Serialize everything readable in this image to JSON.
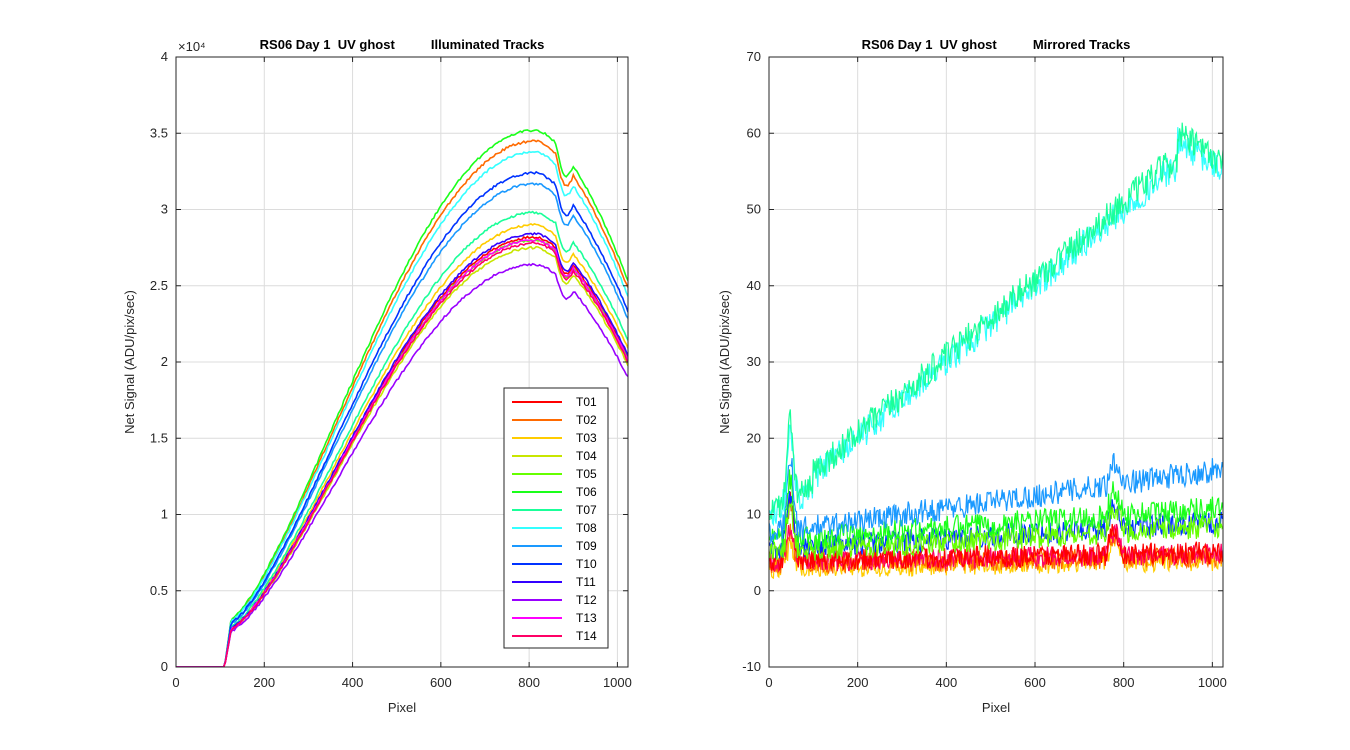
{
  "chart_data": [
    {
      "type": "line",
      "title": "RS06 Day 1  UV ghost          Illuminated Tracks",
      "xlabel": "Pixel",
      "ylabel": "Net Signal (ADU/pix/sec)",
      "exponent_label": "×10⁴",
      "xlim": [
        0,
        1024
      ],
      "ylim": [
        0,
        4
      ],
      "xticks": [
        0,
        200,
        400,
        600,
        800,
        1000
      ],
      "xtick_labels": [
        "0",
        "200",
        "400",
        "600",
        "800",
        "1000"
      ],
      "yticks": [
        0,
        0.5,
        1,
        1.5,
        2,
        2.5,
        3,
        3.5,
        4
      ],
      "ytick_labels": [
        "0",
        "0.5",
        "1",
        "1.5",
        "2",
        "2.5",
        "3",
        "3.5",
        "4"
      ],
      "grid": true,
      "legend_position": "bottom-right",
      "series": [
        {
          "name": "T01",
          "color": "#ff0000",
          "peak": 2.82
        },
        {
          "name": "T02",
          "color": "#ff6a00",
          "peak": 3.45
        },
        {
          "name": "T03",
          "color": "#ffcc00",
          "peak": 2.9
        },
        {
          "name": "T04",
          "color": "#c8e600",
          "peak": 2.75
        },
        {
          "name": "T05",
          "color": "#66ff00",
          "peak": 2.8
        },
        {
          "name": "T06",
          "color": "#1aff1a",
          "peak": 3.52
        },
        {
          "name": "T07",
          "color": "#1aff99",
          "peak": 2.98
        },
        {
          "name": "T08",
          "color": "#33ffff",
          "peak": 3.38
        },
        {
          "name": "T09",
          "color": "#1a99ff",
          "peak": 3.17
        },
        {
          "name": "T10",
          "color": "#0033ff",
          "peak": 3.24
        },
        {
          "name": "T11",
          "color": "#3300ff",
          "peak": 2.84
        },
        {
          "name": "T12",
          "color": "#9900ff",
          "peak": 2.64
        },
        {
          "name": "T13",
          "color": "#ff00ff",
          "peak": 2.8
        },
        {
          "name": "T14",
          "color": "#ff0066",
          "peak": 2.78
        }
      ]
    },
    {
      "type": "line",
      "title": "RS06 Day 1  UV ghost          Mirrored Tracks",
      "xlabel": "Pixel",
      "ylabel": "Net Signal (ADU/pix/sec)",
      "xlim": [
        0,
        1024
      ],
      "ylim": [
        -10,
        70
      ],
      "xticks": [
        0,
        200,
        400,
        600,
        800,
        1000
      ],
      "xtick_labels": [
        "0",
        "200",
        "400",
        "600",
        "800",
        "1000"
      ],
      "yticks": [
        -10,
        0,
        10,
        20,
        30,
        40,
        50,
        60,
        70
      ],
      "ytick_labels": [
        "-10",
        "0",
        "10",
        "20",
        "30",
        "40",
        "50",
        "60",
        "70"
      ],
      "grid": true,
      "series": [
        {
          "color": "#ffcc00",
          "kind": "flat",
          "base": 3.0,
          "end": 4.0,
          "bump": 3,
          "noise": 1.4
        },
        {
          "color": "#ff6a00",
          "kind": "flat",
          "base": 3.5,
          "end": 4.5,
          "bump": 4,
          "noise": 1.4
        },
        {
          "color": "#ff0066",
          "kind": "flat",
          "base": 3.8,
          "end": 4.8,
          "bump": 5,
          "noise": 1.4
        },
        {
          "color": "#ff0000",
          "kind": "flat",
          "base": 4.0,
          "end": 5.0,
          "bump": 8,
          "noise": 1.5
        },
        {
          "color": "#0033ff",
          "kind": "flat",
          "base": 5.5,
          "end": 9.0,
          "bump": 7,
          "noise": 1.5
        },
        {
          "color": "#66ff00",
          "kind": "flat",
          "base": 5.0,
          "end": 8.5,
          "bump": 6,
          "noise": 1.5
        },
        {
          "color": "#1aff1a",
          "kind": "flat",
          "base": 6.5,
          "end": 11.0,
          "bump": 8,
          "noise": 1.6
        },
        {
          "color": "#1a99ff",
          "kind": "flat",
          "base": 7.5,
          "end": 16.0,
          "bump": 10,
          "noise": 1.6
        },
        {
          "color": "#33ffff",
          "kind": "rise",
          "base": 10.0,
          "end": 55.0,
          "bump": 9,
          "noise": 1.6
        },
        {
          "color": "#1aff99",
          "kind": "rise",
          "base": 10.5,
          "end": 56.0,
          "bump": 10,
          "noise": 1.6
        }
      ]
    }
  ]
}
